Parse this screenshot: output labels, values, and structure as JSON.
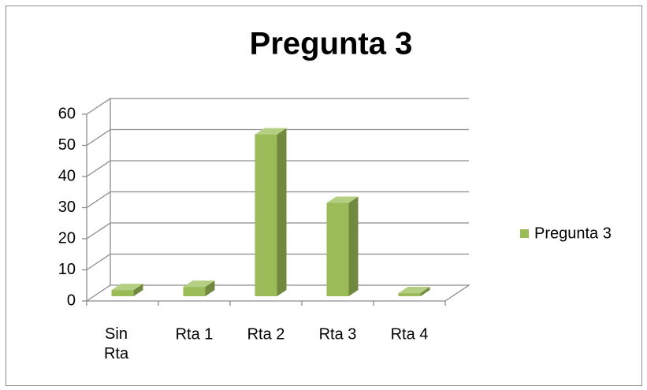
{
  "chart_data": {
    "type": "bar3d",
    "title": "Pregunta 3",
    "categories": [
      "Sin Rta",
      "Rta 1",
      "Rta 2",
      "Rta 3",
      "Rta 4"
    ],
    "series": [
      {
        "name": "Pregunta 3",
        "color": "#9bbb59",
        "values": [
          2,
          3,
          52,
          30,
          1
        ]
      }
    ],
    "ylim": [
      0,
      60
    ],
    "yticks": [
      0,
      10,
      20,
      30,
      40,
      50,
      60
    ],
    "grid": true,
    "legend": "right"
  }
}
